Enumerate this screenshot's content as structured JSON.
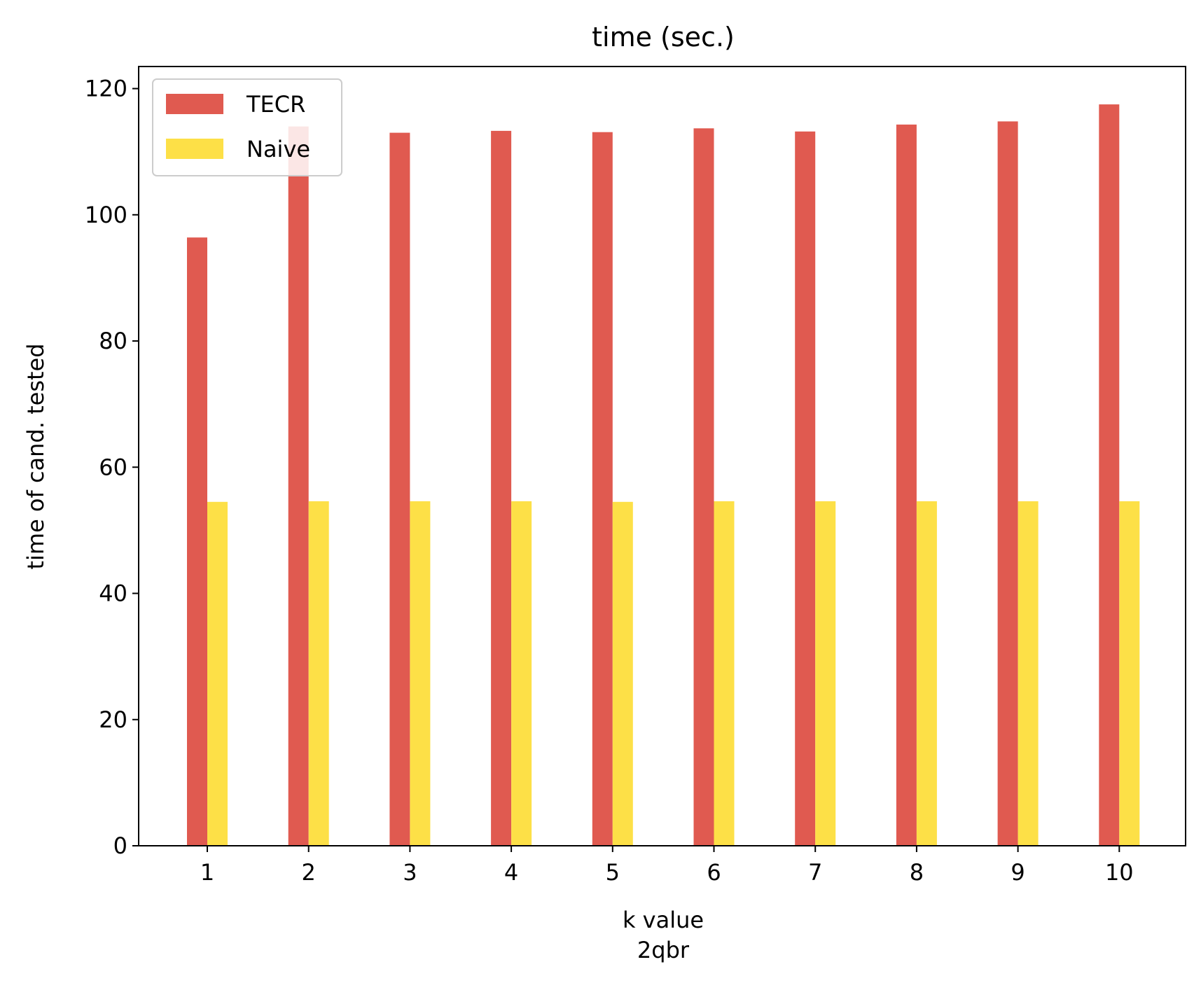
{
  "chart_data": {
    "type": "bar",
    "title": "time (sec.)",
    "xlabel": "k value",
    "xlabel_sub": "2qbr",
    "ylabel": "time of cand. tested",
    "categories": [
      "1",
      "2",
      "3",
      "4",
      "5",
      "6",
      "7",
      "8",
      "9",
      "10"
    ],
    "series": [
      {
        "name": "TECR",
        "color": "#e05a50",
        "values": [
          96.4,
          114.0,
          113.0,
          113.3,
          113.1,
          113.7,
          113.2,
          114.3,
          114.8,
          117.5
        ]
      },
      {
        "name": "Naive",
        "color": "#fde047",
        "values": [
          54.5,
          54.6,
          54.6,
          54.6,
          54.5,
          54.6,
          54.6,
          54.6,
          54.6,
          54.6
        ]
      }
    ],
    "ylim": [
      0,
      123.5
    ],
    "yticks": [
      "0",
      "20",
      "40",
      "60",
      "80",
      "100",
      "120"
    ],
    "grid": false,
    "legend_position": "top-left"
  }
}
